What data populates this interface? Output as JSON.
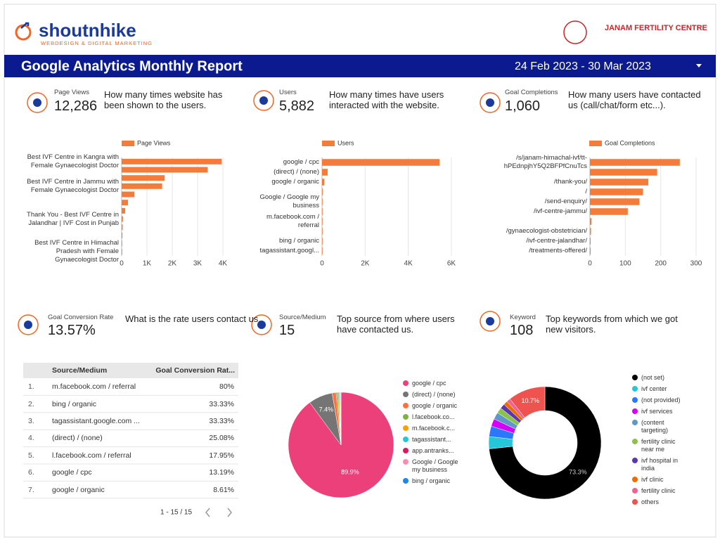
{
  "header": {
    "logo": "shoutnhike",
    "logo_tagline": "WEBDESIGN & DIGITAL MARKETING",
    "client": "JANAM FERTILITY CENTRE",
    "title": "Google Analytics Monthly Report",
    "date_range": "24 Feb 2023 - 30 Mar 2023"
  },
  "kpis": [
    {
      "label": "Page Views",
      "value": "12,286",
      "description": "How many times website has been shown to the users."
    },
    {
      "label": "Users",
      "value": "5,882",
      "description": "How many times have users interacted with the website."
    },
    {
      "label": "Goal Completions",
      "value": "1,060",
      "description": "How many users have contacted us (call/chat/form etc...)."
    },
    {
      "label": "Goal Conversion Rate",
      "value": "13.57%",
      "description": "What is the rate users contact us."
    },
    {
      "label": "Source/Medium",
      "value": "15",
      "description": "Top source from where users have contacted us."
    },
    {
      "label": "Keyword",
      "value": "108",
      "description": "Top keywords from which we got new visitors."
    }
  ],
  "table": {
    "columns": [
      "Source/Medium",
      "Goal Conversion Rat..."
    ],
    "rows": [
      [
        "1.",
        "m.facebook.com / referral",
        "80%"
      ],
      [
        "2.",
        "bing / organic",
        "33.33%"
      ],
      [
        "3.",
        "tagassistant.google.com ...",
        "33.33%"
      ],
      [
        "4.",
        "(direct) / (none)",
        "25.08%"
      ],
      [
        "5.",
        "l.facebook.com / referral",
        "17.95%"
      ],
      [
        "6.",
        "google / cpc",
        "13.19%"
      ],
      [
        "7.",
        "google / organic",
        "8.61%"
      ]
    ],
    "pagination": "1 - 15 / 15"
  },
  "chart_data": [
    {
      "type": "bar",
      "orientation": "horizontal",
      "categories": [
        "Best IVF Centre in Kangra with Female Gynaecologist Doctor",
        null,
        null,
        "Best IVF Centre in Jammu with Female Gynaecologist Doctor",
        null,
        null,
        null,
        "Thank You - Best IVF Centre in Jalandhar | IVF Cost in Punjab",
        null,
        null,
        null,
        "Best IVF Centre in Himachal Pradesh with Female Gynaecologist Doctor"
      ],
      "series": [
        {
          "name": "Page Views",
          "color": "#f47b3a",
          "values": [
            3950,
            3400,
            1700,
            1600,
            500,
            250,
            140,
            50,
            40,
            30,
            20,
            10
          ]
        }
      ],
      "xlim": [
        0,
        4000
      ],
      "xticks": [
        0,
        {
          "value": 1000,
          "label": "1K"
        },
        {
          "value": 2000,
          "label": "2K"
        },
        {
          "value": 3000,
          "label": "3K"
        },
        {
          "value": 4000,
          "label": "4K"
        }
      ],
      "grid": true
    },
    {
      "type": "bar",
      "orientation": "horizontal",
      "categories": [
        "google / cpc",
        "(direct) / (none)",
        "google / organic",
        null,
        "Google / Google my business",
        null,
        "m.facebook.com / referral",
        null,
        "bing / organic",
        "tagassistant.googl..."
      ],
      "series": [
        {
          "name": "Users",
          "color": "#f47b3a",
          "values": [
            5450,
            260,
            100,
            30,
            20,
            15,
            10,
            8,
            5,
            3
          ]
        }
      ],
      "xlim": [
        0,
        6000
      ],
      "xticks": [
        0,
        {
          "value": 2000,
          "label": "2K"
        },
        {
          "value": 4000,
          "label": "4K"
        },
        {
          "value": 6000,
          "label": "6K"
        }
      ],
      "grid": true
    },
    {
      "type": "bar",
      "orientation": "horizontal",
      "categories": [
        "/s/janam-himachal-ivf/tt-hPEdnpjhY5Q2BFPfCnuTcs",
        null,
        "/thank-you/",
        "/",
        "/send-enquiry/",
        "/ivf-centre-jammu/",
        null,
        "/gynaecologist-obstetrician/",
        "/ivf-centre-jalandhar/",
        "/treatments-offered/"
      ],
      "series": [
        {
          "name": "Goal Completions",
          "color": "#f47b3a",
          "values": [
            254,
            190,
            165,
            150,
            140,
            107,
            4,
            3,
            2,
            2
          ]
        }
      ],
      "xlim": [
        0,
        300
      ],
      "xticks": [
        0,
        100,
        200,
        300
      ],
      "grid": true
    },
    {
      "type": "pie",
      "categories": [
        "google / cpc",
        "(direct) / (none)",
        "google / organic",
        "l.facebook.co...",
        "m.facebook.c...",
        "tagassistant...",
        "app.antranks...",
        "Google / Google my business",
        "bing / organic"
      ],
      "values": [
        89.9,
        7.4,
        1.2,
        0.5,
        0.4,
        0.2,
        0.2,
        0.1,
        0.1
      ],
      "value_labels": [
        "89.9%",
        "7.4%",
        null,
        null,
        null,
        null,
        null,
        null,
        null
      ],
      "colors": [
        "#ec407a",
        "#757575",
        "#ff7043",
        "#7cb342",
        "#ffa000",
        "#26c6da",
        "#d81b60",
        "#f48fb1",
        "#1e88e5"
      ]
    },
    {
      "type": "donut",
      "categories": [
        "(not set)",
        "ivf center",
        "(not provided)",
        "ivf services",
        "(content targeting)",
        "fertility clinic near me",
        "ivf hospital in india",
        "ivf clinic",
        "fertility clinic",
        "others"
      ],
      "values": [
        73.3,
        3.5,
        3.0,
        2.2,
        2.0,
        1.6,
        1.4,
        1.2,
        1.1,
        10.7
      ],
      "value_labels": [
        "73.3%",
        null,
        null,
        null,
        null,
        null,
        null,
        null,
        null,
        "10.7%"
      ],
      "colors": [
        "#000000",
        "#26c6da",
        "#2979ff",
        "#d500f9",
        "#5e97c9",
        "#8bc34a",
        "#5e35b1",
        "#ef6c00",
        "#f06292",
        "#ef5350"
      ]
    }
  ]
}
